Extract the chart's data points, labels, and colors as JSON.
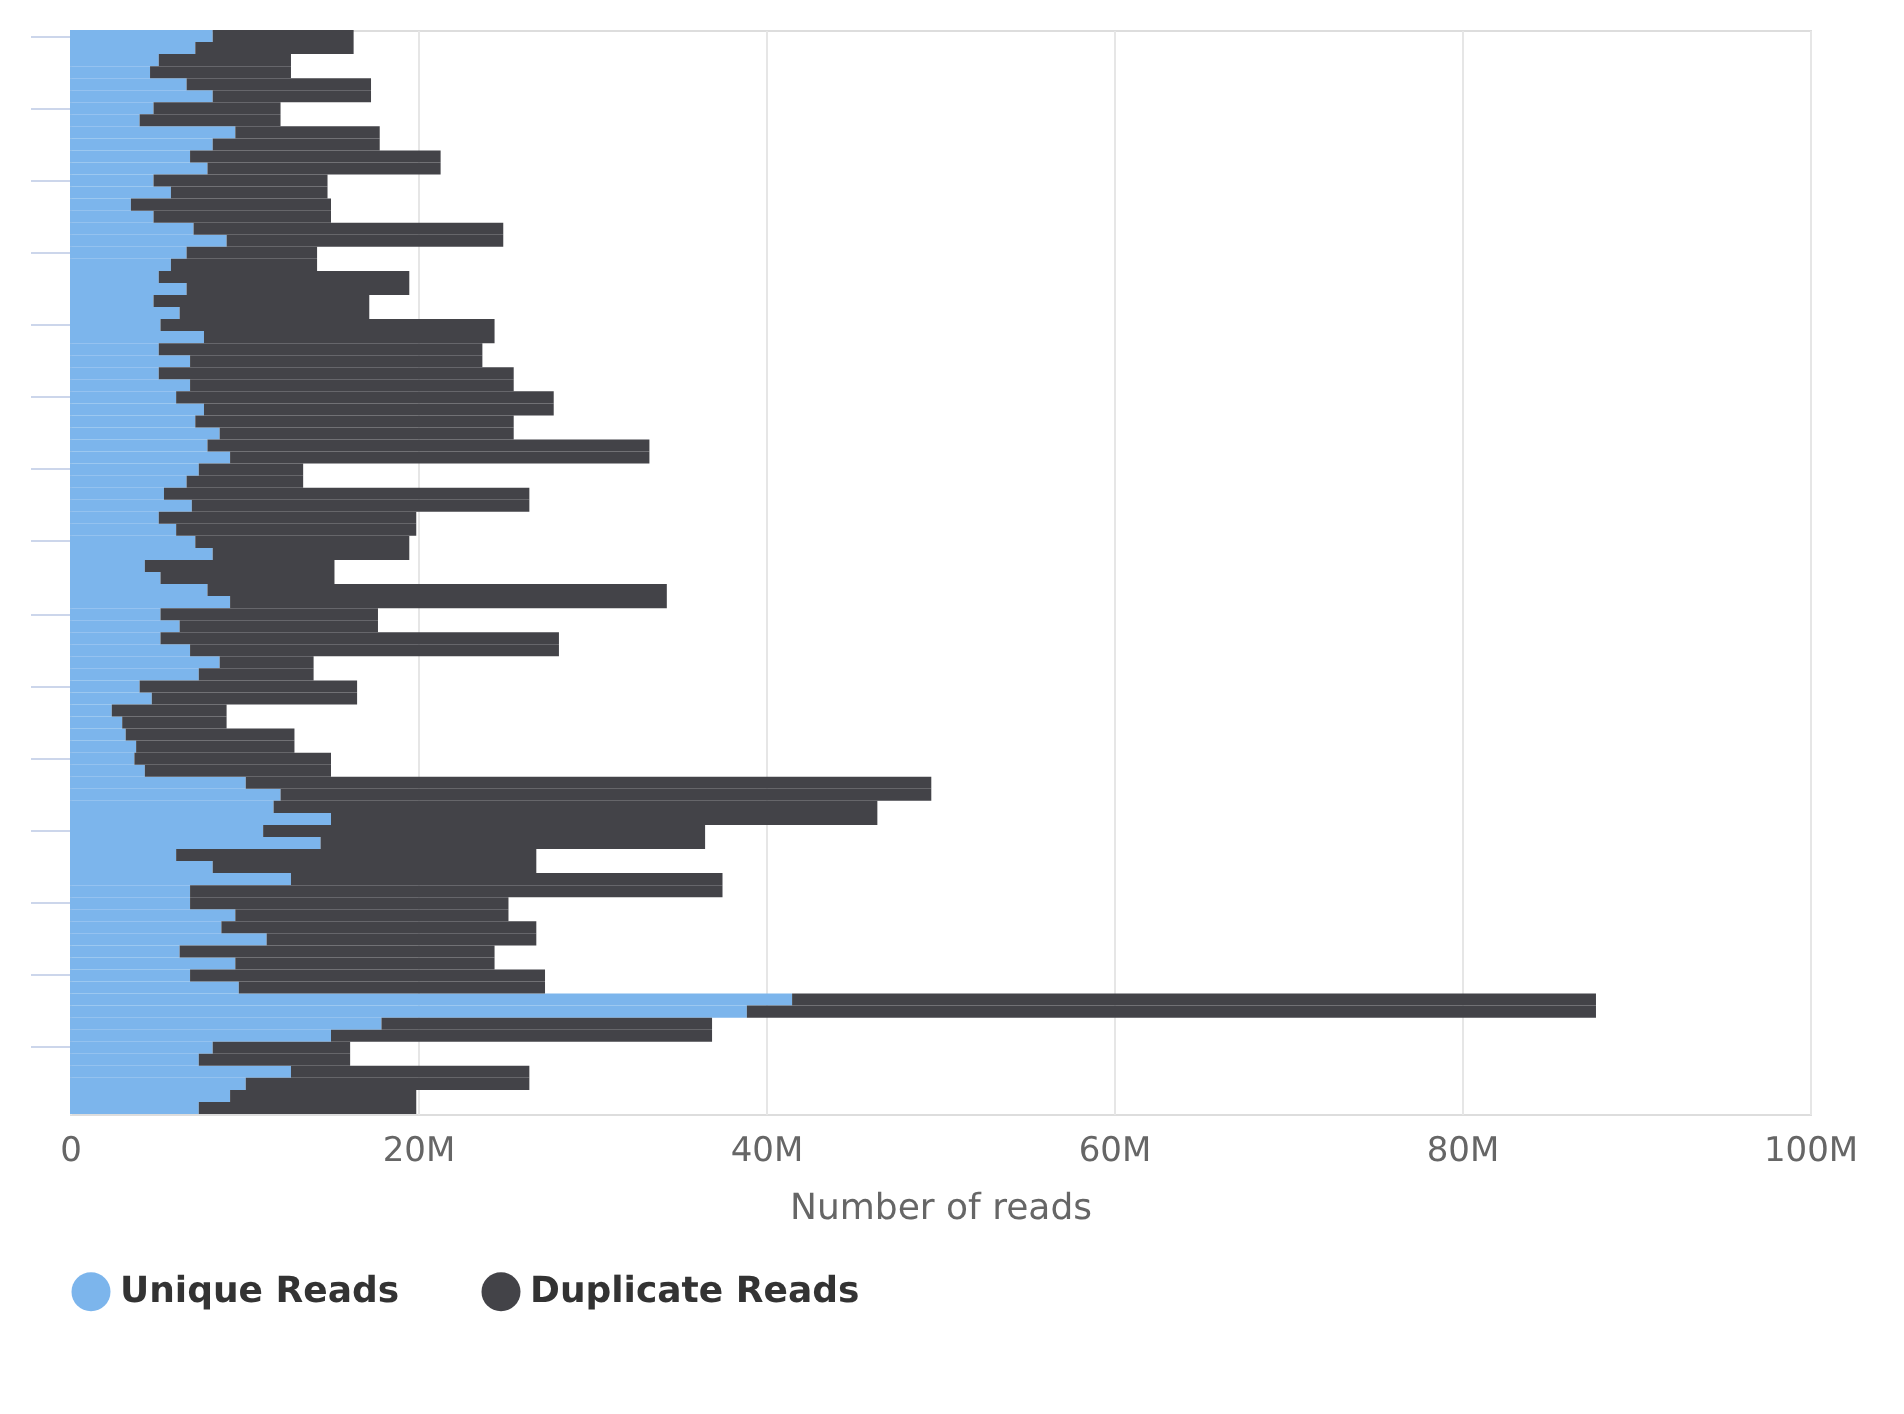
{
  "chart_data": {
    "type": "bar",
    "orientation": "horizontal",
    "stacked": true,
    "xlabel": "Number of reads",
    "categories": [
      null,
      null,
      null,
      null,
      null,
      null,
      null,
      null,
      null,
      null,
      null,
      null,
      null,
      null,
      null,
      null,
      null,
      null,
      null,
      null,
      null,
      null,
      null,
      null,
      null,
      null,
      null,
      null,
      null,
      null,
      null,
      null,
      null,
      null,
      null,
      null,
      null,
      null,
      null,
      null,
      null,
      null,
      null,
      null,
      null,
      null,
      null,
      null,
      null,
      null,
      null,
      null,
      null,
      null,
      null,
      null,
      null,
      null,
      null,
      null,
      null,
      null,
      null,
      null,
      null,
      null,
      null,
      null,
      null,
      null,
      null,
      null,
      null,
      null,
      null,
      null,
      null,
      null,
      null,
      null,
      null,
      null,
      null,
      null,
      null,
      null,
      null,
      null,
      null,
      null
    ],
    "series": [
      {
        "name": "Unique Reads",
        "color": "#7cb5ec",
        "values": [
          8.2,
          7.2,
          5.1,
          4.6,
          6.7,
          8.2,
          4.8,
          4.0,
          9.5,
          8.2,
          6.9,
          7.9,
          4.8,
          5.8,
          3.5,
          4.8,
          7.1,
          9.0,
          6.7,
          5.8,
          5.1,
          6.7,
          4.8,
          6.3,
          5.2,
          7.7,
          5.1,
          6.9,
          5.1,
          6.9,
          6.1,
          7.7,
          7.2,
          8.6,
          7.9,
          9.2,
          7.4,
          6.7,
          5.4,
          7.0,
          5.1,
          6.1,
          7.2,
          8.2,
          4.3,
          5.2,
          7.9,
          9.2,
          5.2,
          6.3,
          5.2,
          6.9,
          8.6,
          7.4,
          4.0,
          4.7,
          2.4,
          3.0,
          3.2,
          3.8,
          3.7,
          4.3,
          10.1,
          12.1,
          11.7,
          15.0,
          11.1,
          14.4,
          6.1,
          8.2,
          12.7,
          6.9,
          6.9,
          9.5,
          8.7,
          11.3,
          6.3,
          9.5,
          6.9,
          9.7,
          41.5,
          38.9,
          17.9,
          15.0,
          8.2,
          7.4,
          12.7,
          10.1,
          9.2,
          7.4
        ]
      },
      {
        "name": "Duplicate Reads",
        "color": "#434348",
        "values": [
          8.1,
          9.1,
          7.6,
          8.1,
          10.6,
          9.1,
          7.3,
          8.1,
          8.3,
          9.6,
          14.4,
          13.4,
          10.0,
          9.0,
          11.5,
          10.2,
          17.8,
          15.9,
          7.5,
          8.4,
          14.4,
          12.8,
          12.4,
          10.9,
          19.2,
          16.7,
          18.6,
          16.8,
          20.4,
          18.6,
          21.7,
          20.1,
          18.3,
          16.9,
          25.4,
          24.1,
          6.0,
          6.7,
          21.0,
          19.4,
          14.8,
          13.8,
          12.3,
          11.3,
          10.9,
          10.0,
          26.4,
          25.1,
          12.5,
          11.4,
          22.9,
          21.2,
          5.4,
          6.6,
          12.5,
          11.8,
          6.6,
          6.0,
          9.7,
          9.1,
          11.3,
          10.7,
          39.4,
          37.4,
          34.7,
          31.4,
          25.4,
          22.1,
          20.7,
          18.6,
          24.8,
          30.6,
          18.3,
          15.7,
          18.1,
          15.5,
          18.1,
          14.9,
          20.4,
          17.6,
          46.2,
          48.8,
          19.0,
          21.9,
          7.9,
          8.7,
          13.7,
          16.3,
          10.7,
          12.5
        ]
      }
    ],
    "xlim": [
      0,
      100
    ],
    "xticks": [
      0,
      {
        "value": 20,
        "label": "20M"
      },
      {
        "value": 40,
        "label": "40M"
      },
      {
        "value": 60,
        "label": "60M"
      },
      {
        "value": 80,
        "label": "80M"
      },
      {
        "value": 100,
        "label": "100M"
      }
    ],
    "grid": "x",
    "legend": "bottom",
    "tick_labels": "x"
  }
}
